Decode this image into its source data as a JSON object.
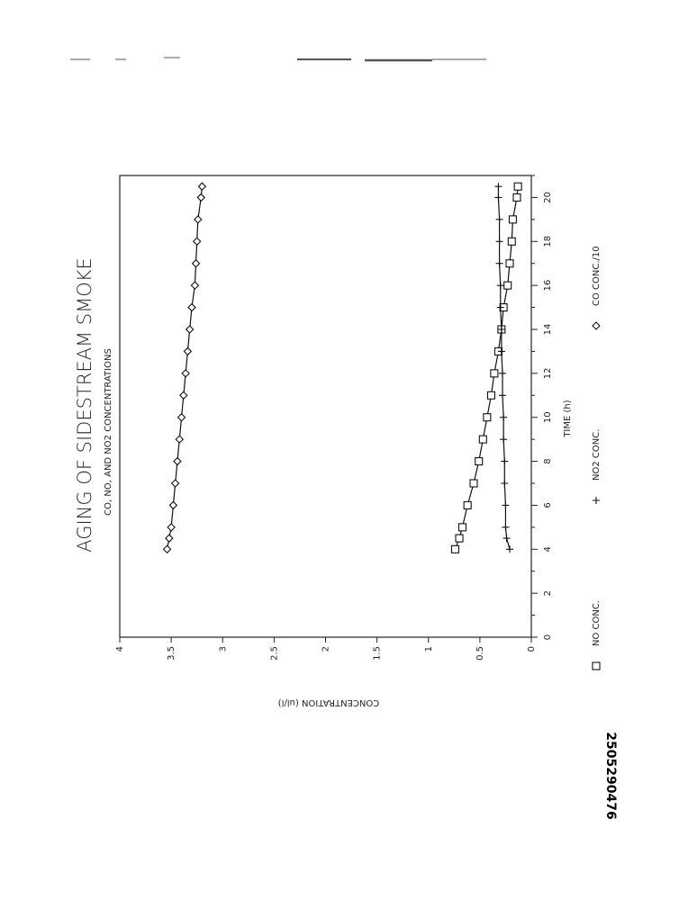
{
  "chart_data": {
    "type": "line",
    "title": "AGING OF SIDESTREAM SMOKE",
    "subtitle": "CO, NO, AND NO2 CONCENTRATIONS",
    "x_label": "TIME (h)",
    "y_label": "CONCENTRATION (ul/l)",
    "x": [
      4,
      4.5,
      5,
      6,
      7,
      8,
      9,
      10,
      11,
      12,
      13,
      14,
      15,
      16,
      17,
      18,
      19,
      20,
      20.5
    ],
    "series": [
      {
        "name": "NO CONC.",
        "color": "#111111",
        "marker": "square",
        "values": [
          0.74,
          0.7,
          0.67,
          0.62,
          0.56,
          0.51,
          0.47,
          0.43,
          0.39,
          0.36,
          0.32,
          0.29,
          0.27,
          0.23,
          0.21,
          0.19,
          0.18,
          0.14,
          0.13
        ]
      },
      {
        "name": "NO2 CONC.",
        "color": "#111111",
        "marker": "plus",
        "values": [
          0.21,
          0.24,
          0.25,
          0.25,
          0.26,
          0.26,
          0.27,
          0.27,
          0.28,
          0.28,
          0.29,
          0.29,
          0.3,
          0.3,
          0.31,
          0.31,
          0.31,
          0.32,
          0.32
        ]
      },
      {
        "name": "CO CONC./10",
        "color": "#111111",
        "marker": "diamond",
        "values": [
          3.54,
          3.52,
          3.5,
          3.48,
          3.46,
          3.44,
          3.42,
          3.4,
          3.38,
          3.36,
          3.34,
          3.32,
          3.3,
          3.27,
          3.26,
          3.25,
          3.24,
          3.21,
          3.2
        ]
      }
    ],
    "xlim": [
      0,
      21
    ],
    "xticks": [
      0,
      2,
      4,
      6,
      8,
      10,
      12,
      14,
      16,
      18,
      20
    ],
    "xminorticks": [
      1,
      3,
      5,
      7,
      9,
      11,
      13,
      15,
      17,
      19,
      21
    ],
    "ylim": [
      0,
      4
    ],
    "yticks": [
      0,
      0.5,
      1,
      1.5,
      2,
      2.5,
      3,
      3.5,
      4
    ],
    "grid": false
  },
  "document_id": "2505290476"
}
